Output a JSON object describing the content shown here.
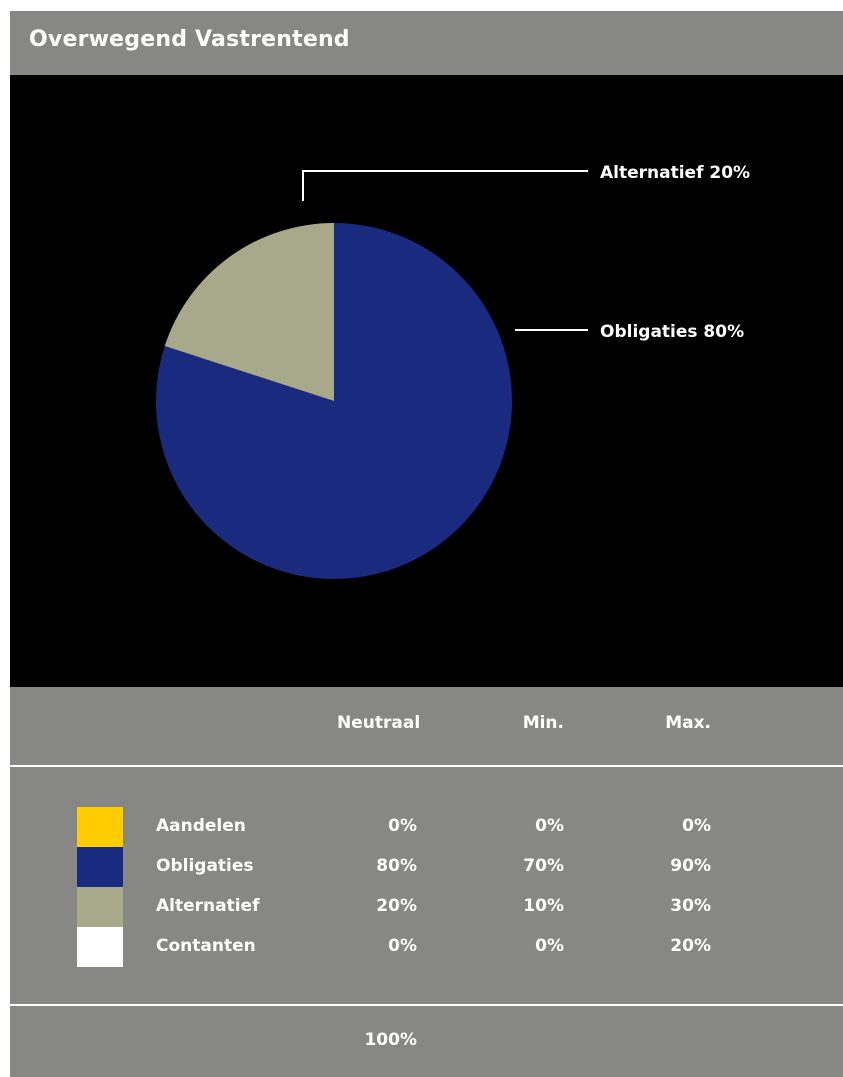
{
  "title": "Overwegend Vastrentend",
  "chart_data": {
    "type": "pie",
    "title": "Overwegend Vastrentend",
    "slices": [
      {
        "label": "Obligaties",
        "value": 80,
        "display": "Obligaties 80%",
        "color": "#1a2a7e"
      },
      {
        "label": "Alternatief",
        "value": 20,
        "display": "Alternatief 20%",
        "color": "#a8a88a"
      }
    ]
  },
  "table": {
    "headers": {
      "neutraal": "Neutraal",
      "min": "Min.",
      "max": "Max."
    },
    "rows": [
      {
        "label": "Aandelen",
        "neutraal": "0%",
        "min": "0%",
        "max": "0%",
        "color": "#ffcc00"
      },
      {
        "label": "Obligaties",
        "neutraal": "80%",
        "min": "70%",
        "max": "90%",
        "color": "#1a2a7e"
      },
      {
        "label": "Alternatief",
        "neutraal": "20%",
        "min": "10%",
        "max": "30%",
        "color": "#a8a88a"
      },
      {
        "label": "Contanten",
        "neutraal": "0%",
        "min": "0%",
        "max": "20%",
        "color": "#ffffff"
      }
    ],
    "total": "100%"
  }
}
